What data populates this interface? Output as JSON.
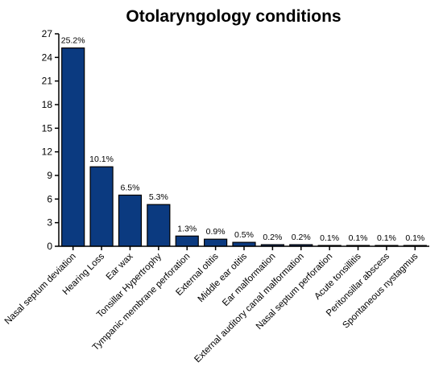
{
  "chart_data": {
    "type": "bar",
    "title": "Otolaryngology conditions",
    "xlabel": "",
    "ylabel": "",
    "ylim": [
      0,
      27
    ],
    "yticks": [
      0,
      3,
      6,
      9,
      12,
      15,
      18,
      21,
      24,
      27
    ],
    "grid": false,
    "legend": "none",
    "bar_color": "#0b3a80",
    "categories": [
      "Nasal septum deviation",
      "Hearing Loss",
      "Ear wax",
      "Tonsillar Hypertrophy",
      "Tympanic membrane perforation",
      "External otitis",
      "Middle ear otitis",
      "Ear malformation",
      "External auditory canal malformation",
      "Nasal septum perforation",
      "Acute tonsillitis",
      "Peritonsillar abscess",
      "Spontaneous nystagmus"
    ],
    "values": [
      25.2,
      10.1,
      6.5,
      5.3,
      1.3,
      0.9,
      0.5,
      0.2,
      0.2,
      0.1,
      0.1,
      0.1,
      0.1
    ],
    "data_labels": [
      "25.2%",
      "10.1%",
      "6.5%",
      "5.3%",
      "1.3%",
      "0.9%",
      "0.5%",
      "0.2%",
      "0.2%",
      "0.1%",
      "0.1%",
      "0.1%",
      "0.1%"
    ]
  }
}
